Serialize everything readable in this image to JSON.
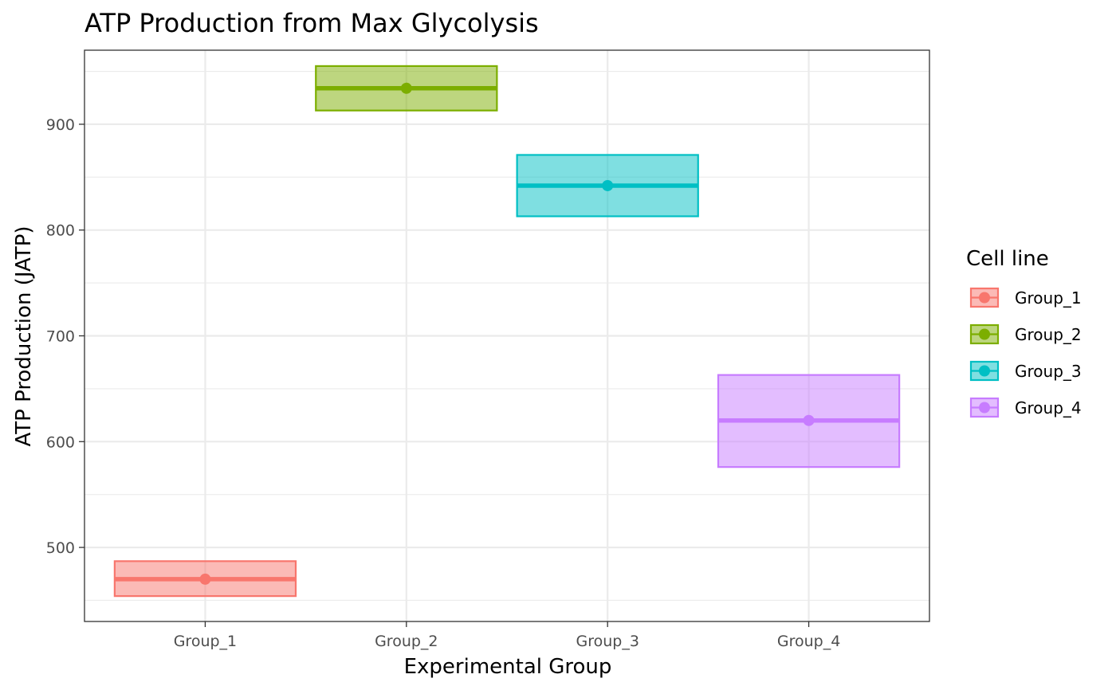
{
  "chart_data": {
    "type": "crossbar",
    "title": "ATP Production from Max Glycolysis",
    "xlabel": "Experimental Group",
    "ylabel": "ATP Production (JATP)",
    "categories": [
      "Group_1",
      "Group_2",
      "Group_3",
      "Group_4"
    ],
    "ylim": [
      430,
      970
    ],
    "yticks": [
      500,
      600,
      700,
      800,
      900
    ],
    "grid": true,
    "legend": {
      "title": "Cell line",
      "position": "right",
      "entries": [
        "Group_1",
        "Group_2",
        "Group_3",
        "Group_4"
      ]
    },
    "series": [
      {
        "name": "Group_1",
        "mean": 470,
        "lower": 454,
        "upper": 487,
        "color": "#F8766D"
      },
      {
        "name": "Group_2",
        "mean": 934,
        "lower": 913,
        "upper": 955,
        "color": "#7CAE00"
      },
      {
        "name": "Group_3",
        "mean": 842,
        "lower": 813,
        "upper": 871,
        "color": "#00BFC4"
      },
      {
        "name": "Group_4",
        "mean": 620,
        "lower": 576,
        "upper": 663,
        "color": "#C77CFF"
      }
    ]
  }
}
